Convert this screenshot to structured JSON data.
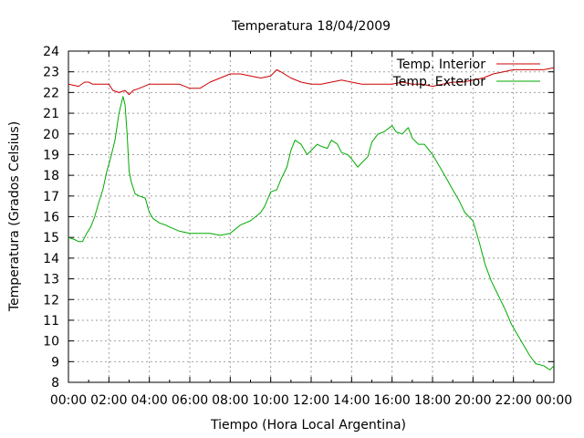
{
  "chart_data": {
    "type": "line",
    "title": "Temperatura 18/04/2009",
    "xlabel": "Tiempo (Hora Local Argentina)",
    "ylabel": "Temperatura (Grados Celsius)",
    "xlim": [
      0,
      24
    ],
    "ylim": [
      8,
      24
    ],
    "x_ticks": [
      "00:00",
      "02:00",
      "04:00",
      "06:00",
      "08:00",
      "10:00",
      "12:00",
      "14:00",
      "16:00",
      "18:00",
      "20:00",
      "22:00",
      "00:00"
    ],
    "y_ticks": [
      "8",
      "9",
      "10",
      "11",
      "12",
      "13",
      "14",
      "15",
      "16",
      "17",
      "18",
      "19",
      "20",
      "21",
      "22",
      "23",
      "24"
    ],
    "grid": true,
    "legend_position": "top-right",
    "x_unit": "hours since 00:00",
    "series": [
      {
        "name": "Temp. Interior",
        "color": "#cc0000",
        "x": [
          0,
          0.5,
          0.8,
          1.0,
          1.2,
          1.5,
          2.0,
          2.2,
          2.5,
          2.8,
          3.0,
          3.2,
          3.5,
          4.0,
          4.5,
          5.0,
          5.5,
          6.0,
          6.5,
          7.0,
          7.5,
          8.0,
          8.5,
          9.0,
          9.5,
          10.0,
          10.3,
          10.5,
          11.0,
          11.5,
          12.0,
          12.5,
          13.0,
          13.5,
          14.0,
          14.5,
          15.0,
          15.5,
          16.0,
          16.5,
          17.0,
          17.5,
          18.0,
          18.5,
          19.0,
          19.5,
          20.0,
          20.5,
          21.0,
          21.5,
          22.0,
          22.5,
          23.0,
          23.5,
          24.0
        ],
        "values": [
          22.4,
          22.3,
          22.5,
          22.5,
          22.4,
          22.4,
          22.4,
          22.1,
          22.0,
          22.1,
          21.9,
          22.1,
          22.2,
          22.4,
          22.4,
          22.4,
          22.4,
          22.2,
          22.2,
          22.5,
          22.7,
          22.9,
          22.9,
          22.8,
          22.7,
          22.8,
          23.1,
          23.0,
          22.7,
          22.5,
          22.4,
          22.4,
          22.5,
          22.6,
          22.5,
          22.4,
          22.4,
          22.4,
          22.4,
          22.5,
          22.4,
          22.4,
          22.3,
          22.4,
          22.5,
          22.5,
          22.6,
          22.7,
          22.9,
          23.0,
          23.1,
          23.1,
          23.1,
          23.1,
          23.2
        ]
      },
      {
        "name": "Temp. Exterior",
        "color": "#00aa00",
        "x": [
          0,
          0.3,
          0.5,
          0.7,
          0.9,
          1.1,
          1.3,
          1.5,
          1.7,
          1.9,
          2.1,
          2.3,
          2.5,
          2.7,
          2.8,
          2.9,
          3.0,
          3.1,
          3.2,
          3.3,
          3.5,
          3.8,
          4.0,
          4.2,
          4.5,
          4.8,
          5.0,
          5.5,
          6.0,
          6.5,
          7.0,
          7.5,
          8.0,
          8.5,
          9.0,
          9.5,
          9.7,
          10.0,
          10.3,
          10.5,
          10.8,
          11.0,
          11.2,
          11.5,
          11.8,
          12.0,
          12.3,
          12.5,
          12.8,
          13.0,
          13.3,
          13.5,
          13.8,
          14.0,
          14.3,
          14.5,
          14.8,
          15.0,
          15.3,
          15.6,
          16.0,
          16.2,
          16.5,
          16.8,
          17.0,
          17.3,
          17.6,
          18.0,
          18.3,
          18.6,
          19.0,
          19.3,
          19.6,
          20.0,
          20.3,
          20.6,
          20.9,
          21.1,
          21.3,
          21.6,
          21.9,
          22.2,
          22.5,
          22.8,
          23.1,
          23.5,
          23.8,
          24.0
        ],
        "values": [
          15.0,
          14.9,
          14.8,
          14.8,
          15.2,
          15.5,
          16.0,
          16.7,
          17.3,
          18.2,
          18.9,
          19.7,
          21.0,
          21.8,
          21.4,
          20.0,
          18.2,
          17.7,
          17.4,
          17.1,
          17.0,
          16.9,
          16.2,
          15.9,
          15.7,
          15.6,
          15.5,
          15.3,
          15.2,
          15.2,
          15.2,
          15.1,
          15.2,
          15.6,
          15.8,
          16.2,
          16.5,
          17.2,
          17.3,
          17.8,
          18.4,
          19.2,
          19.7,
          19.5,
          19.0,
          19.2,
          19.5,
          19.4,
          19.3,
          19.7,
          19.5,
          19.1,
          19.0,
          18.8,
          18.4,
          18.6,
          18.9,
          19.6,
          20.0,
          20.1,
          20.4,
          20.1,
          20.0,
          20.3,
          19.8,
          19.5,
          19.5,
          19.0,
          18.5,
          18.0,
          17.3,
          16.8,
          16.2,
          15.8,
          14.8,
          13.7,
          12.9,
          12.5,
          12.1,
          11.5,
          10.8,
          10.3,
          9.8,
          9.3,
          8.9,
          8.8,
          8.6,
          8.8
        ]
      }
    ]
  }
}
